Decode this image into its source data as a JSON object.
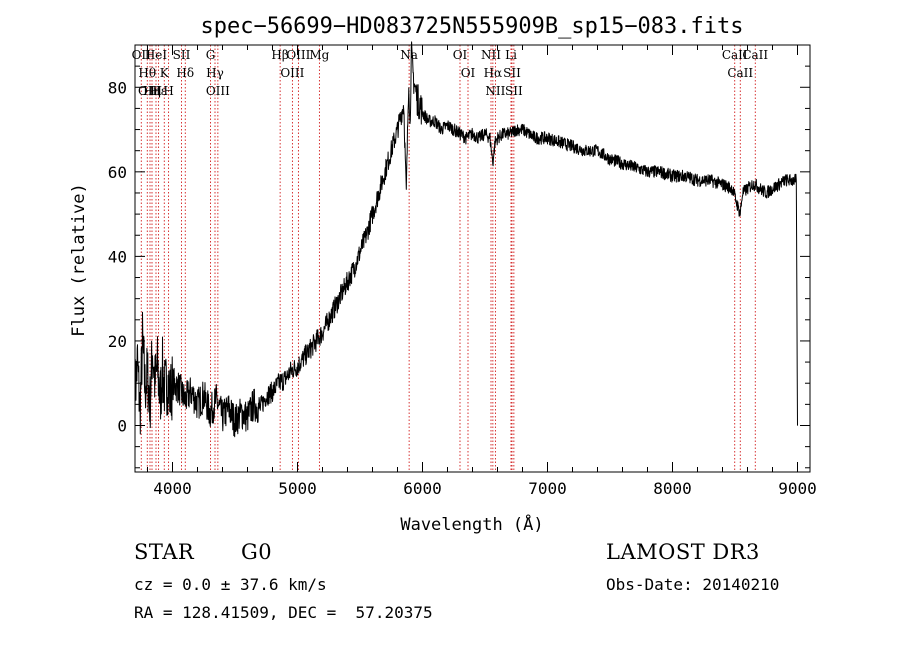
{
  "chart_data": {
    "type": "line",
    "title": "spec−56699−HD083725N555909B_sp15−083.fits",
    "xlabel": "Wavelength (Å)",
    "ylabel": "Flux (relative)",
    "xlim": [
      3700,
      9100
    ],
    "ylim": [
      -11,
      90
    ],
    "x_ticks": [
      4000,
      5000,
      6000,
      7000,
      8000,
      9000
    ],
    "y_ticks": [
      0,
      20,
      40,
      60,
      80
    ],
    "grid": false,
    "line_color": "#000000",
    "marker_color": "#cc0000",
    "series": [
      {
        "x": [
          3700,
          3720,
          3740,
          3760,
          3780,
          3800,
          3820,
          3840,
          3860,
          3880,
          3900,
          3920,
          3940,
          3960,
          3980,
          4000,
          4050,
          4100,
          4150,
          4200,
          4250,
          4300,
          4350,
          4400,
          4450,
          4500,
          4550,
          4600,
          4650,
          4700,
          4750,
          4800,
          4850,
          4900,
          4950,
          5000,
          5050,
          5100,
          5150,
          5200,
          5250,
          5300,
          5350,
          5400,
          5450,
          5500,
          5550,
          5600,
          5650,
          5700,
          5750,
          5800,
          5850,
          5870,
          5890,
          5900,
          5910,
          5920,
          5940,
          5960,
          5980,
          6000,
          6050,
          6100,
          6150,
          6200,
          6250,
          6300,
          6350,
          6400,
          6450,
          6500,
          6540,
          6563,
          6580,
          6600,
          6650,
          6700,
          6750,
          6800,
          6850,
          6900,
          6950,
          7000,
          7100,
          7200,
          7300,
          7400,
          7500,
          7600,
          7700,
          7800,
          7900,
          8000,
          8100,
          8200,
          8300,
          8400,
          8480,
          8500,
          8520,
          8542,
          8560,
          8600,
          8640,
          8662,
          8700,
          8750,
          8800,
          8850,
          8900,
          8950,
          8990,
          9000
        ],
        "y": [
          8,
          15,
          3,
          20,
          9,
          12,
          5,
          18,
          10,
          14,
          6,
          13,
          8,
          11,
          7,
          10,
          9,
          6,
          8,
          5,
          7,
          3,
          6,
          2,
          4,
          1,
          3,
          2,
          5,
          4,
          7,
          8,
          10,
          11,
          13,
          14,
          16,
          18,
          20,
          22,
          25,
          28,
          31,
          34,
          37,
          41,
          45,
          50,
          55,
          60,
          65,
          70,
          76,
          55,
          82,
          70,
          88,
          84,
          80,
          77,
          76,
          74,
          72,
          72,
          70,
          71,
          70,
          69,
          68,
          69,
          68,
          69,
          68,
          62,
          67,
          68,
          69,
          69,
          70,
          70,
          69,
          68,
          68,
          68,
          67,
          66,
          65,
          65,
          63,
          62,
          61,
          60,
          60,
          59,
          59,
          58,
          58,
          57,
          56,
          54,
          52,
          50,
          55,
          56,
          57,
          57,
          56,
          55,
          56,
          57,
          58,
          58,
          58,
          -1
        ]
      }
    ],
    "line_markers": [
      {
        "wavelength": 3750,
        "label": "OII"
      },
      {
        "wavelength": 3798,
        "label": "Hθ"
      },
      {
        "wavelength": 3820,
        "label": "OIII"
      },
      {
        "wavelength": 3836,
        "label": "Hη"
      },
      {
        "wavelength": 3868,
        "label": "HeI"
      },
      {
        "wavelength": 3889,
        "label": "Hε"
      },
      {
        "wavelength": 3934,
        "label": "K"
      },
      {
        "wavelength": 3969,
        "label": "H"
      },
      {
        "wavelength": 4072,
        "label": "SII"
      },
      {
        "wavelength": 4102,
        "label": "Hδ"
      },
      {
        "wavelength": 4304,
        "label": "G"
      },
      {
        "wavelength": 4340,
        "label": "Hγ"
      },
      {
        "wavelength": 4363,
        "label": "OIII"
      },
      {
        "wavelength": 4861,
        "label": "Hβ"
      },
      {
        "wavelength": 4959,
        "label": "OIII"
      },
      {
        "wavelength": 5007,
        "label": "OIII"
      },
      {
        "wavelength": 5175,
        "label": "Mg"
      },
      {
        "wavelength": 5893,
        "label": "Na"
      },
      {
        "wavelength": 6300,
        "label": "OI"
      },
      {
        "wavelength": 6364,
        "label": "OI"
      },
      {
        "wavelength": 6548,
        "label": "NII"
      },
      {
        "wavelength": 6563,
        "label": "Hα"
      },
      {
        "wavelength": 6583,
        "label": "NII"
      },
      {
        "wavelength": 6708,
        "label": "Li"
      },
      {
        "wavelength": 6716,
        "label": "SII"
      },
      {
        "wavelength": 6731,
        "label": "SII"
      },
      {
        "wavelength": 8498,
        "label": "CaII"
      },
      {
        "wavelength": 8542,
        "label": "CaII"
      },
      {
        "wavelength": 8662,
        "label": "CaII"
      }
    ]
  },
  "info": {
    "object_class": "STAR",
    "subclass": "G0",
    "redshift": "cz = 0.0 ± 37.6 km/s",
    "coordinates": "RA = 128.41509, DEC =  57.20375",
    "survey": "LAMOST DR3",
    "obs_date": "Obs-Date: 20140210"
  }
}
